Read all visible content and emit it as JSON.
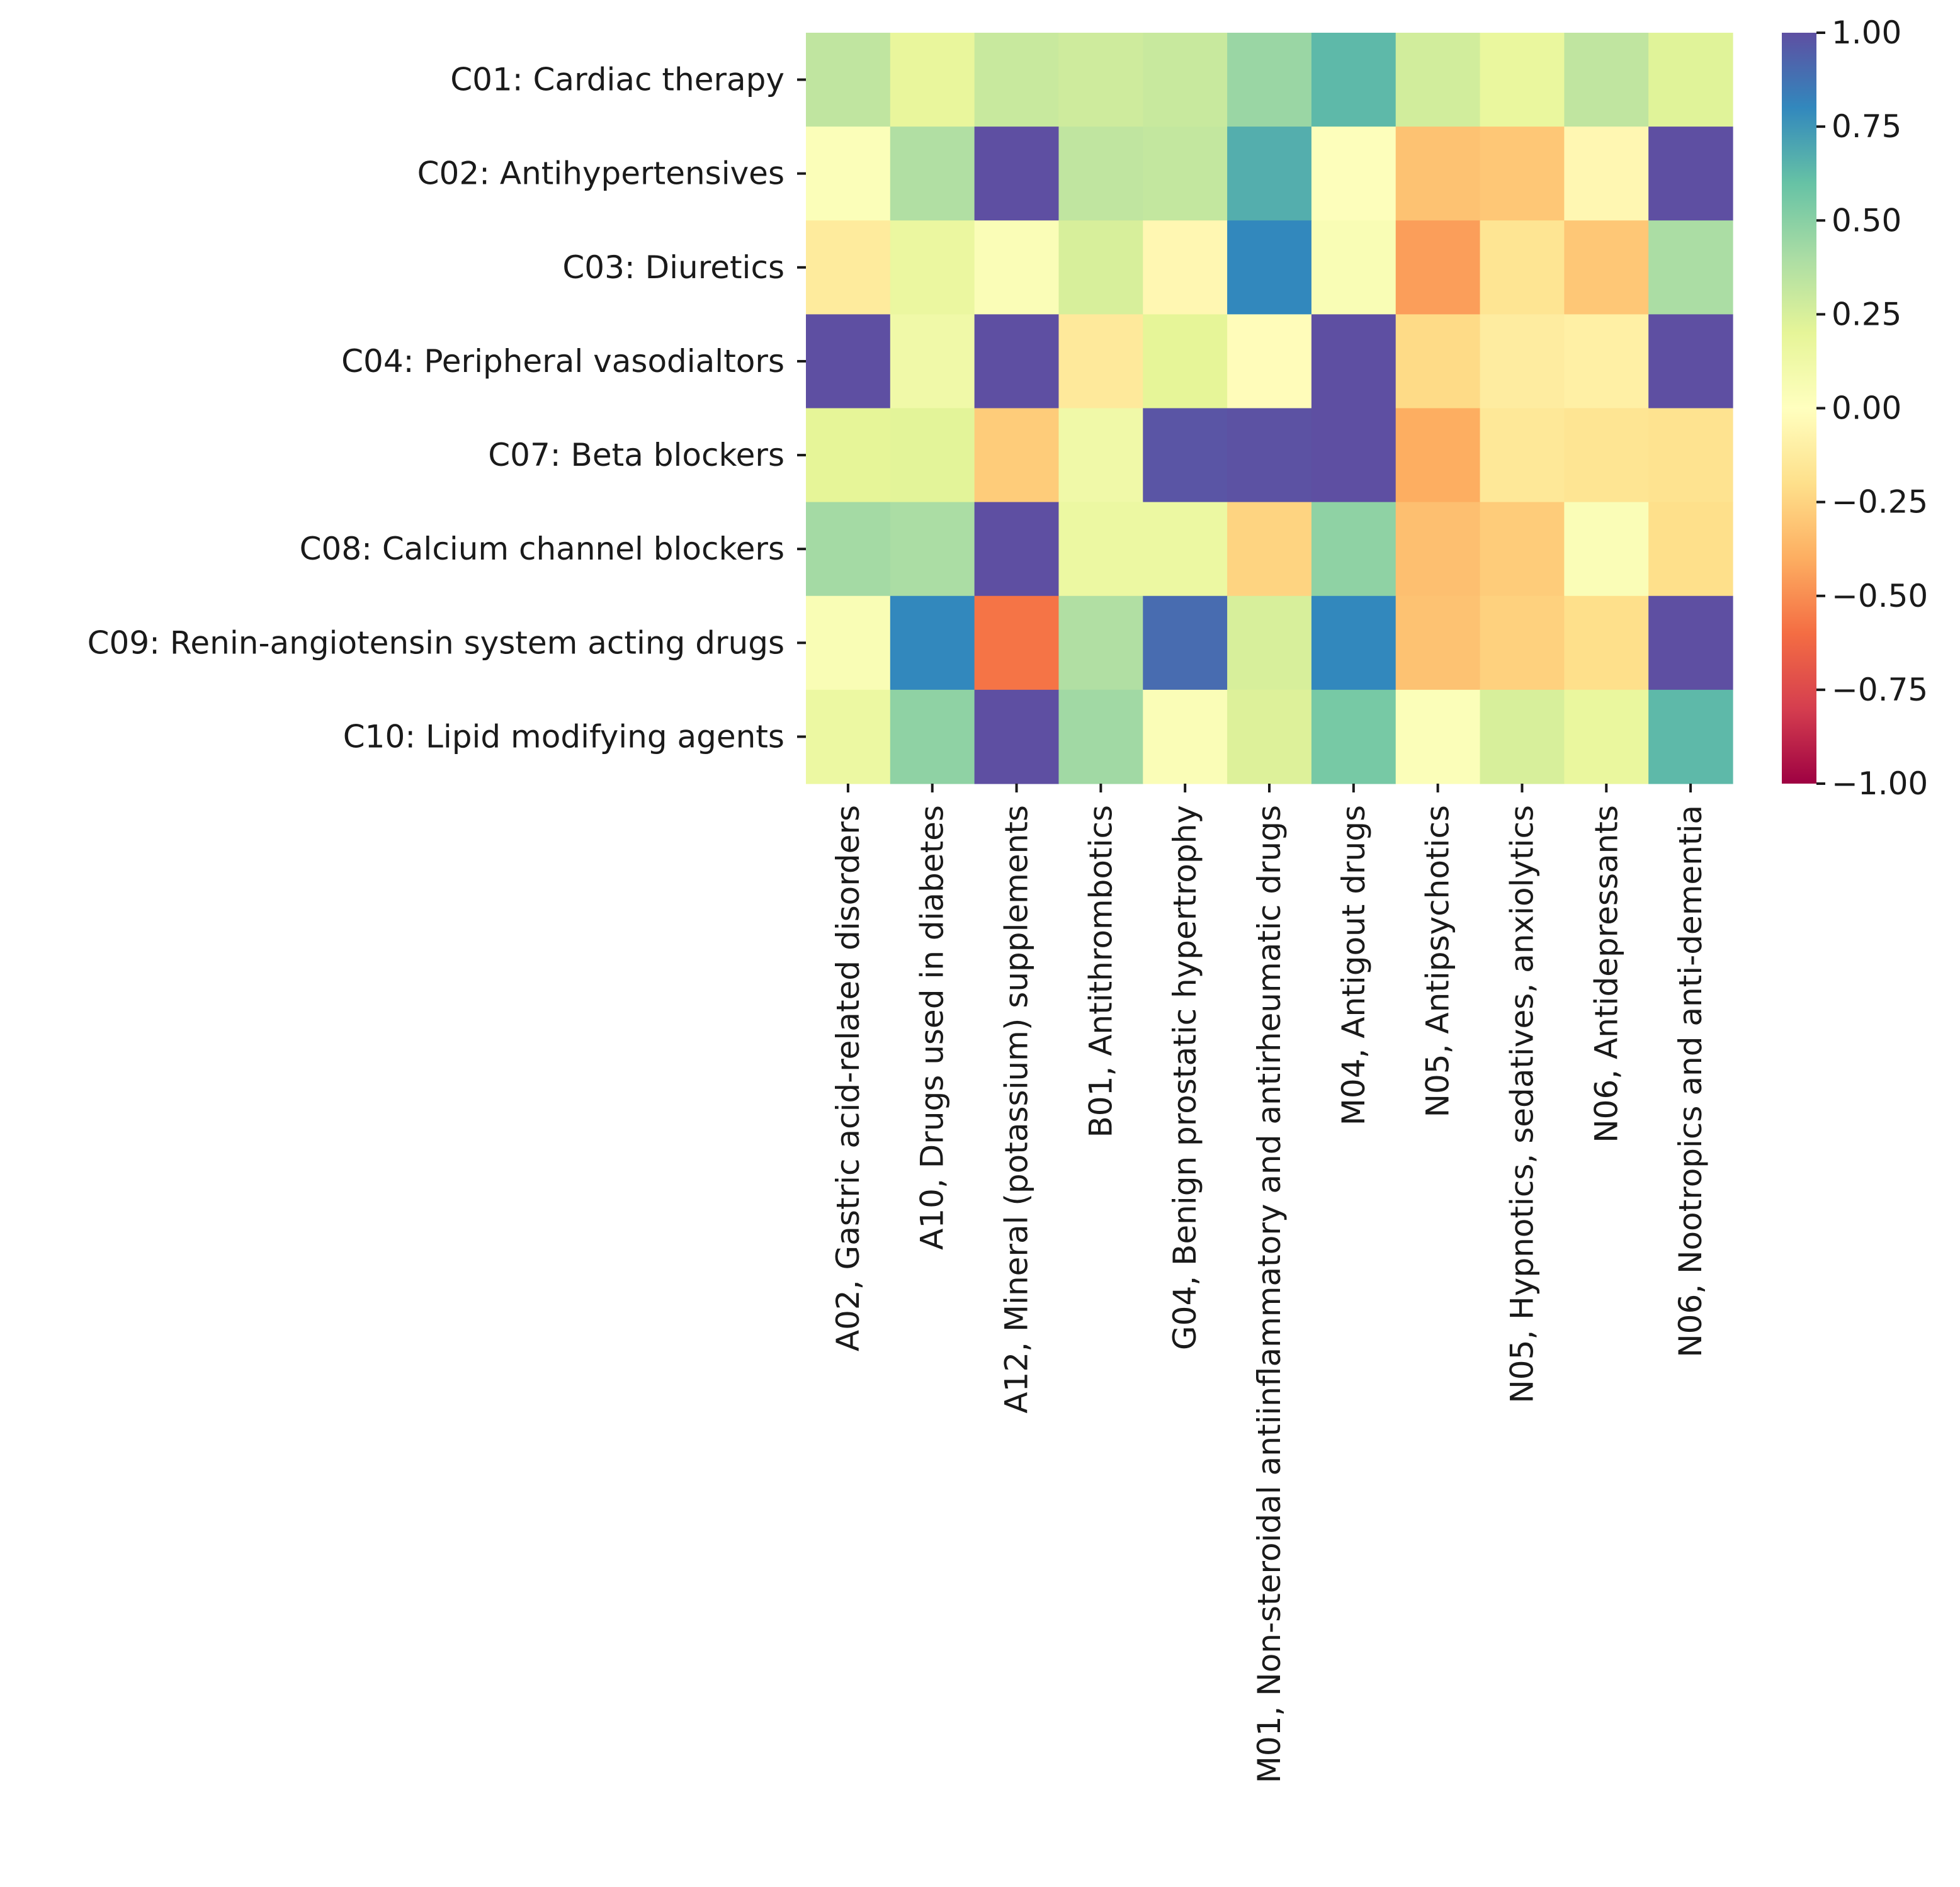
{
  "chart_data": {
    "type": "heatmap",
    "title": "",
    "xlabel": "",
    "ylabel": "",
    "rows": [
      "C01: Cardiac therapy",
      "C02: Antihypertensives",
      "C03: Diuretics",
      "C04: Peripheral vasodialtors",
      "C07: Beta blockers",
      "C08: Calcium channel blockers",
      "C09: Renin-angiotensin system acting drugs",
      "C10: Lipid modifying agents"
    ],
    "columns": [
      "A02, Gastric acid-related disorders",
      "A10, Drugs used in diabetes",
      "A12, Mineral (potassium) supplements",
      "B01, Antithrombotics",
      "G04, Benign prostatic hypertrophy",
      "M01, Non-steroidal antiinflammatory and antirheumatic drugs",
      "M04, Antigout drugs",
      "N05, Antipsychotics",
      "N05, Hypnotics, sedatives, anxiolytics",
      "N06, Antidepressants",
      "N06, Nootropics and anti-dementia"
    ],
    "values": [
      [
        0.33,
        0.18,
        0.3,
        0.28,
        0.3,
        0.45,
        0.63,
        0.27,
        0.17,
        0.33,
        0.22
      ],
      [
        0.03,
        0.38,
        1.0,
        0.33,
        0.32,
        0.67,
        0.02,
        -0.32,
        -0.3,
        -0.05,
        1.0
      ],
      [
        -0.13,
        0.16,
        0.04,
        0.25,
        -0.05,
        0.8,
        0.05,
        -0.45,
        -0.17,
        -0.3,
        0.4
      ],
      [
        1.0,
        0.12,
        1.0,
        -0.14,
        0.2,
        -0.02,
        1.0,
        -0.22,
        -0.12,
        -0.1,
        1.0
      ],
      [
        0.2,
        0.21,
        -0.28,
        0.12,
        0.98,
        0.99,
        1.0,
        -0.4,
        -0.15,
        -0.17,
        -0.18
      ],
      [
        0.42,
        0.4,
        1.0,
        0.15,
        0.15,
        -0.25,
        0.48,
        -0.33,
        -0.28,
        0.04,
        -0.2
      ],
      [
        0.05,
        0.8,
        -0.58,
        0.38,
        0.9,
        0.25,
        0.8,
        -0.32,
        -0.26,
        -0.2,
        1.0
      ],
      [
        0.15,
        0.48,
        1.0,
        0.43,
        0.04,
        0.23,
        0.55,
        0.03,
        0.25,
        0.17,
        0.63
      ]
    ],
    "colorbar": {
      "colormap": "Spectral",
      "vmin": -1.0,
      "vmax": 1.0,
      "ticks": [
        1.0,
        0.75,
        0.5,
        0.25,
        0.0,
        -0.25,
        -0.5,
        -0.75,
        -1.0
      ],
      "tick_labels": [
        "1.00",
        "0.75",
        "0.50",
        "0.25",
        "0.00",
        "−0.25",
        "−0.50",
        "−0.75",
        "−1.00"
      ]
    }
  }
}
